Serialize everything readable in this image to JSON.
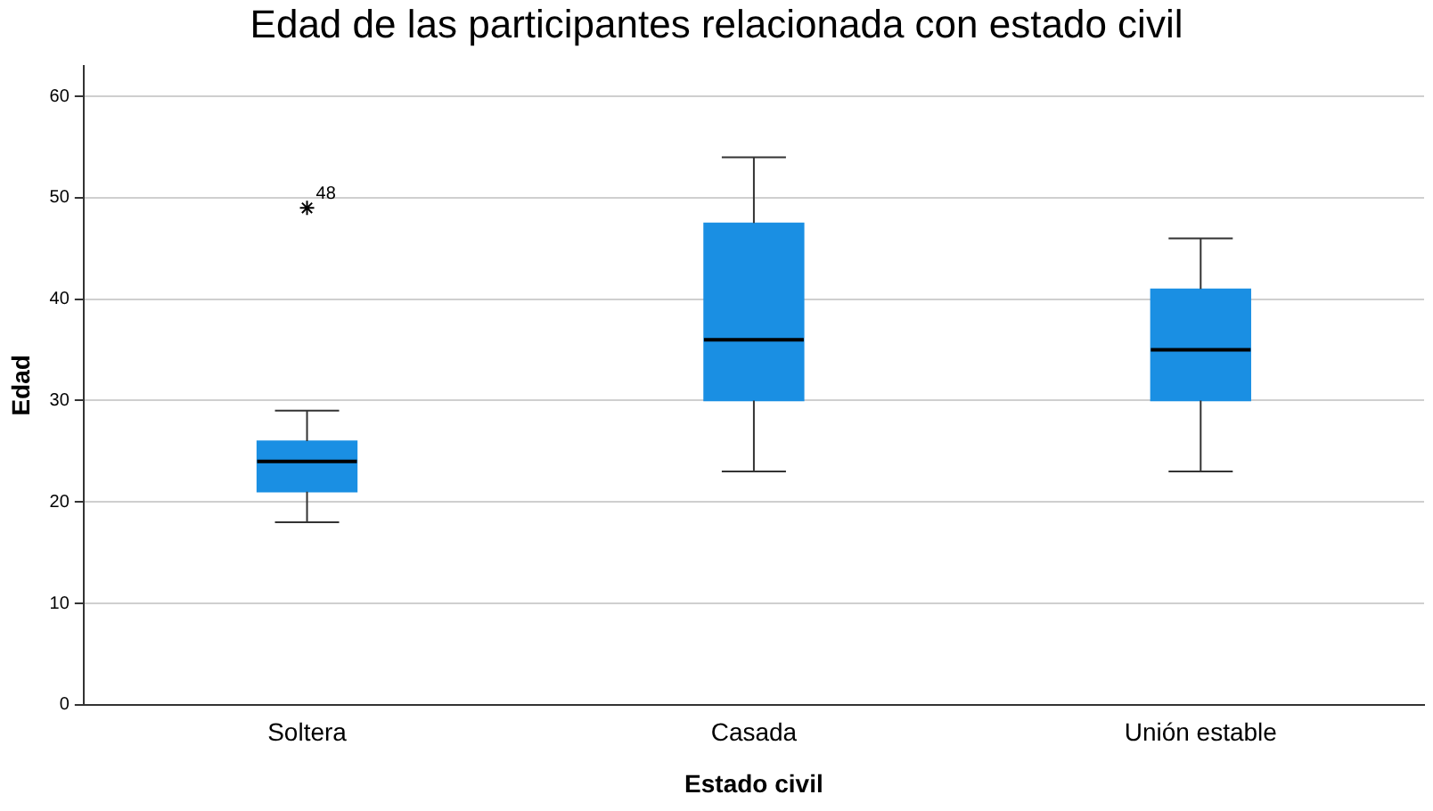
{
  "chart_data": {
    "type": "box",
    "title": "Edad de las participantes relacionada con estado civil",
    "xlabel": "Estado civil",
    "ylabel": "Edad",
    "categories": [
      "Soltera",
      "Casada",
      "Unión estable"
    ],
    "color": "#1a8fe3",
    "boxes": [
      {
        "low": 18,
        "q1": 21,
        "median": 24,
        "q3": 26,
        "high": 29,
        "outliers": [
          49
        ]
      },
      {
        "low": 23,
        "q1": 30,
        "median": 36,
        "q3": 47.5,
        "high": 54
      },
      {
        "low": 23,
        "q1": 30,
        "median": 35,
        "q3": 41,
        "high": 46
      }
    ],
    "ylim": [
      0,
      63
    ],
    "yticks": [
      0,
      10,
      20,
      30,
      40,
      50,
      60
    ],
    "grid": "y",
    "legend": false,
    "annotations": [
      "48"
    ]
  }
}
